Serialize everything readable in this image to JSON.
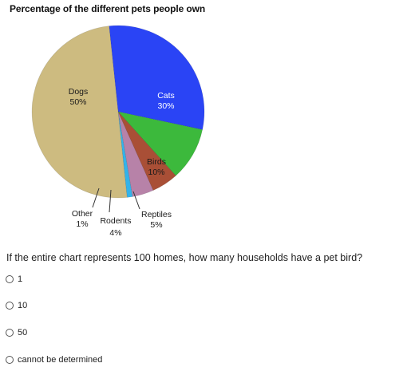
{
  "chart_data": {
    "type": "pie",
    "title": "Percentage of the different pets people own",
    "slices": [
      {
        "label": "Dogs",
        "pct_label": "50%",
        "value": 50,
        "color": "#cdbb80"
      },
      {
        "label": "Cats",
        "pct_label": "30%",
        "value": 30,
        "color": "#2a44f5"
      },
      {
        "label": "Birds",
        "pct_label": "10%",
        "value": 10,
        "color": "#3cb93c"
      },
      {
        "label": "Reptiles",
        "pct_label": "5%",
        "value": 5,
        "color": "#a94f36"
      },
      {
        "label": "Rodents",
        "pct_label": "4%",
        "value": 4,
        "color": "#b782a8"
      },
      {
        "label": "Other",
        "pct_label": "1%",
        "value": 1,
        "color": "#33b3ea"
      }
    ]
  },
  "question": {
    "text": "If the entire chart represents 100 homes, how many households have a pet bird?",
    "options": [
      {
        "label": "1"
      },
      {
        "label": "10"
      },
      {
        "label": "50"
      },
      {
        "label": "cannot be determined"
      }
    ]
  }
}
